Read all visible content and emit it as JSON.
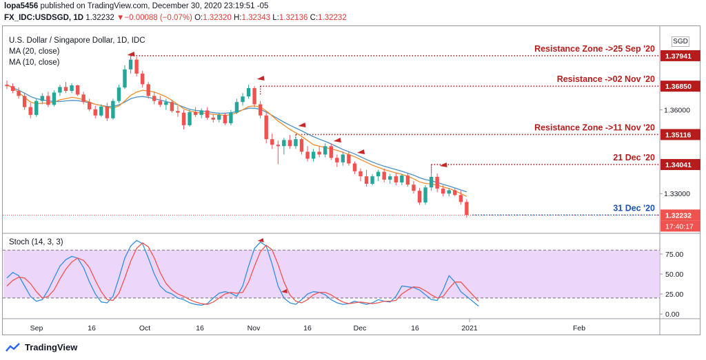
{
  "header": {
    "user": "lopa5456",
    "published": "published on TradingView.com, December 30, 2020 23:19:51 -05"
  },
  "quote": {
    "symbol": "FX_IDC:USDSGD, 1D",
    "last": "1.32232",
    "change": "▼−0.00088 (−0.07%)",
    "o_label": "O:",
    "o": "1.32320",
    "h_label": "H:",
    "h": "1.32343",
    "l_label": "L:",
    "l": "1.32136",
    "c_label": "C:",
    "c": "1.32232"
  },
  "legend": {
    "title": "U.S. Dollar / Singapore Dollar, 1D, IDC",
    "ma20": "MA (20, close)",
    "ma10": "MA (10, close)",
    "stoch": "Stoch (14, 3, 3)"
  },
  "currency_badge": "SGD",
  "footer": {
    "brand": "TradingView"
  },
  "colors": {
    "up": "#26a69a",
    "down": "#ef5350",
    "ma20": "#4a90c8",
    "ma10": "#f28c28",
    "annotation": "#b71c1c",
    "blue_line": "#1e4fb8",
    "stoch_fill": "#e6c8f7",
    "stoch_k": "#2f8fe0",
    "stoch_d": "#ef5350"
  },
  "chart_data": [
    {
      "type": "candlestick",
      "title": "U.S. Dollar / Singapore Dollar, 1D, IDC",
      "x_labels": [
        "Sep",
        "16",
        "Oct",
        "16",
        "Nov",
        "16",
        "Dec",
        "16",
        "2021",
        "Feb"
      ],
      "y_ticks": [
        "1.36000",
        "1.33000"
      ],
      "ylim": [
        1.316,
        1.39
      ],
      "candles": [
        [
          1.369,
          1.3705,
          1.3675,
          1.3685
        ],
        [
          1.3685,
          1.3695,
          1.366,
          1.3668
        ],
        [
          1.3668,
          1.368,
          1.364,
          1.365
        ],
        [
          1.365,
          1.366,
          1.36,
          1.361
        ],
        [
          1.361,
          1.3625,
          1.357,
          1.3582
        ],
        [
          1.3582,
          1.364,
          1.3575,
          1.3632
        ],
        [
          1.3632,
          1.366,
          1.362,
          1.365
        ],
        [
          1.365,
          1.3665,
          1.361,
          1.3618
        ],
        [
          1.3618,
          1.367,
          1.3612,
          1.3662
        ],
        [
          1.3662,
          1.369,
          1.365,
          1.3682
        ],
        [
          1.3682,
          1.37,
          1.366,
          1.3668
        ],
        [
          1.3668,
          1.3695,
          1.366,
          1.3688
        ],
        [
          1.3688,
          1.369,
          1.365,
          1.3655
        ],
        [
          1.3655,
          1.3665,
          1.362,
          1.3628
        ],
        [
          1.3628,
          1.364,
          1.3595,
          1.3602
        ],
        [
          1.3602,
          1.3615,
          1.357,
          1.358
        ],
        [
          1.358,
          1.362,
          1.3575,
          1.3612
        ],
        [
          1.3612,
          1.3625,
          1.356,
          1.357
        ],
        [
          1.357,
          1.364,
          1.3565,
          1.3632
        ],
        [
          1.3632,
          1.369,
          1.3625,
          1.368
        ],
        [
          1.368,
          1.376,
          1.3675,
          1.3745
        ],
        [
          1.3745,
          1.3794,
          1.373,
          1.378
        ],
        [
          1.378,
          1.379,
          1.372,
          1.373
        ],
        [
          1.373,
          1.374,
          1.368,
          1.3692
        ],
        [
          1.3692,
          1.37,
          1.364,
          1.365
        ],
        [
          1.365,
          1.3665,
          1.362,
          1.3632
        ],
        [
          1.3632,
          1.365,
          1.361,
          1.3618
        ],
        [
          1.3618,
          1.364,
          1.36,
          1.3628
        ],
        [
          1.3628,
          1.3635,
          1.359,
          1.3596
        ],
        [
          1.3596,
          1.3615,
          1.3575,
          1.359
        ],
        [
          1.359,
          1.36,
          1.353,
          1.3545
        ],
        [
          1.3545,
          1.36,
          1.354,
          1.3592
        ],
        [
          1.3592,
          1.361,
          1.3575,
          1.3582
        ],
        [
          1.3582,
          1.3605,
          1.357,
          1.3598
        ],
        [
          1.3598,
          1.361,
          1.3565,
          1.3572
        ],
        [
          1.3572,
          1.3585,
          1.3555,
          1.3565
        ],
        [
          1.3565,
          1.359,
          1.3555,
          1.3582
        ],
        [
          1.3582,
          1.359,
          1.3545,
          1.3552
        ],
        [
          1.3552,
          1.36,
          1.3545,
          1.359
        ],
        [
          1.359,
          1.364,
          1.3585,
          1.3628
        ],
        [
          1.3628,
          1.366,
          1.3615,
          1.3648
        ],
        [
          1.3648,
          1.369,
          1.364,
          1.3678
        ],
        [
          1.3678,
          1.3685,
          1.361,
          1.362
        ],
        [
          1.362,
          1.3632,
          1.357,
          1.358
        ],
        [
          1.358,
          1.359,
          1.348,
          1.3495
        ],
        [
          1.3495,
          1.3515,
          1.346,
          1.3475
        ],
        [
          1.3475,
          1.349,
          1.3405,
          1.347
        ],
        [
          1.347,
          1.35,
          1.344,
          1.3492
        ],
        [
          1.3492,
          1.351,
          1.346,
          1.347
        ],
        [
          1.347,
          1.3505,
          1.346,
          1.3495
        ],
        [
          1.3495,
          1.35,
          1.344,
          1.345
        ],
        [
          1.345,
          1.347,
          1.3415,
          1.3425
        ],
        [
          1.3425,
          1.346,
          1.3415,
          1.345
        ],
        [
          1.345,
          1.347,
          1.343,
          1.344
        ],
        [
          1.344,
          1.348,
          1.343,
          1.347
        ],
        [
          1.347,
          1.348,
          1.342,
          1.3428
        ],
        [
          1.3428,
          1.344,
          1.3395,
          1.3412
        ],
        [
          1.3412,
          1.345,
          1.34,
          1.344
        ],
        [
          1.344,
          1.345,
          1.34,
          1.3408
        ],
        [
          1.3408,
          1.3415,
          1.337,
          1.338
        ],
        [
          1.338,
          1.339,
          1.3345,
          1.3362
        ],
        [
          1.3362,
          1.3385,
          1.3325,
          1.3335
        ],
        [
          1.3335,
          1.337,
          1.333,
          1.3362
        ],
        [
          1.3362,
          1.3385,
          1.3345,
          1.3378
        ],
        [
          1.3378,
          1.339,
          1.334,
          1.335
        ],
        [
          1.335,
          1.337,
          1.3335,
          1.3362
        ],
        [
          1.3362,
          1.3375,
          1.333,
          1.334
        ],
        [
          1.334,
          1.337,
          1.333,
          1.3365
        ],
        [
          1.3365,
          1.3372,
          1.3325,
          1.3332
        ],
        [
          1.3332,
          1.3345,
          1.33,
          1.331
        ],
        [
          1.331,
          1.332,
          1.326,
          1.3268
        ],
        [
          1.3268,
          1.333,
          1.326,
          1.3322
        ],
        [
          1.3322,
          1.3404,
          1.331,
          1.336
        ],
        [
          1.336,
          1.3372,
          1.3305,
          1.3318
        ],
        [
          1.3318,
          1.333,
          1.329,
          1.33
        ],
        [
          1.33,
          1.332,
          1.329,
          1.3312
        ],
        [
          1.3312,
          1.332,
          1.329,
          1.3295
        ],
        [
          1.3295,
          1.331,
          1.326,
          1.327
        ],
        [
          1.327,
          1.328,
          1.3213,
          1.3223
        ]
      ],
      "series": [
        {
          "name": "MA (20, close)",
          "values": [
            1.369,
            1.368,
            1.367,
            1.366,
            1.3648,
            1.364,
            1.3636,
            1.3632,
            1.363,
            1.363,
            1.3632,
            1.3634,
            1.3633,
            1.363,
            1.3626,
            1.362,
            1.3616,
            1.3612,
            1.3612,
            1.3618,
            1.3628,
            1.364,
            1.3646,
            1.3648,
            1.3645,
            1.364,
            1.3635,
            1.363,
            1.3624,
            1.3618,
            1.361,
            1.3602,
            1.3598,
            1.3596,
            1.3594,
            1.359,
            1.3588,
            1.3588,
            1.359,
            1.3594,
            1.36,
            1.3606,
            1.3606,
            1.3602,
            1.3592,
            1.358,
            1.3568,
            1.3556,
            1.3545,
            1.3535,
            1.3525,
            1.3514,
            1.3504,
            1.3495,
            1.3487,
            1.3478,
            1.3468,
            1.3458,
            1.345,
            1.3442,
            1.3432,
            1.3422,
            1.3413,
            1.3405,
            1.3398,
            1.3392,
            1.3386,
            1.338,
            1.3373,
            1.3366,
            1.3357,
            1.335,
            1.3346,
            1.334,
            1.3333,
            1.3327,
            1.332,
            1.3313,
            1.3306
          ]
        },
        {
          "name": "MA (10, close)",
          "values": [
            1.369,
            1.3678,
            1.3662,
            1.3645,
            1.3628,
            1.3622,
            1.3624,
            1.3624,
            1.3628,
            1.3636,
            1.364,
            1.3645,
            1.3642,
            1.3636,
            1.3628,
            1.362,
            1.3616,
            1.3609,
            1.3606,
            1.3614,
            1.3632,
            1.3652,
            1.3664,
            1.367,
            1.3668,
            1.3664,
            1.3656,
            1.3647,
            1.3634,
            1.3619,
            1.3604,
            1.3596,
            1.3592,
            1.3589,
            1.3587,
            1.3584,
            1.3583,
            1.358,
            1.3583,
            1.359,
            1.36,
            1.3612,
            1.3614,
            1.361,
            1.3596,
            1.3578,
            1.356,
            1.3545,
            1.353,
            1.3518,
            1.3505,
            1.349,
            1.3475,
            1.347,
            1.3465,
            1.346,
            1.3455,
            1.3448,
            1.344,
            1.3432,
            1.3422,
            1.3412,
            1.3402,
            1.3394,
            1.3386,
            1.338,
            1.3374,
            1.3369,
            1.3362,
            1.3353,
            1.3342,
            1.3336,
            1.3335,
            1.333,
            1.3324,
            1.3318,
            1.331,
            1.33,
            1.329
          ]
        }
      ],
      "price_labels": [
        "1.37941",
        "1.36850",
        "1.35116",
        "1.34041",
        "1.32232",
        "17:40:17"
      ],
      "annotations": [
        "Resistance Zone ->25 Sep '20",
        "Resistance ->02 Nov '20",
        "Resistance Zone ->11 Nov '20",
        "21 Dec '20",
        "31 Dec '20"
      ]
    },
    {
      "type": "line",
      "title": "Stoch (14, 3, 3)",
      "y_ticks": [
        "75.00",
        "50.00",
        "25.00",
        "0.00"
      ],
      "ylim": [
        -5,
        100
      ],
      "bands": [
        20,
        80
      ],
      "series": [
        {
          "name": "%K",
          "values": [
            45,
            52,
            48,
            35,
            22,
            16,
            18,
            30,
            45,
            60,
            68,
            72,
            70,
            58,
            40,
            25,
            15,
            14,
            22,
            45,
            70,
            85,
            92,
            88,
            70,
            50,
            35,
            28,
            25,
            20,
            18,
            14,
            12,
            11,
            13,
            20,
            26,
            28,
            26,
            22,
            35,
            60,
            82,
            90,
            85,
            62,
            35,
            20,
            14,
            12,
            18,
            25,
            28,
            27,
            24,
            18,
            14,
            12,
            13,
            16,
            14,
            12,
            14,
            18,
            16,
            15,
            22,
            35,
            34,
            33,
            30,
            24,
            18,
            17,
            30,
            48,
            40,
            28,
            22,
            16,
            10
          ]
        },
        {
          "name": "%D",
          "values": [
            35,
            42,
            46,
            45,
            38,
            28,
            20,
            22,
            30,
            44,
            56,
            65,
            70,
            67,
            58,
            42,
            28,
            18,
            17,
            26,
            45,
            66,
            82,
            89,
            84,
            70,
            52,
            38,
            30,
            25,
            22,
            18,
            15,
            13,
            12,
            15,
            20,
            25,
            27,
            26,
            27,
            40,
            60,
            78,
            86,
            80,
            62,
            40,
            24,
            16,
            14,
            18,
            24,
            27,
            27,
            24,
            19,
            15,
            13,
            14,
            15,
            14,
            13,
            14,
            16,
            16,
            17,
            25,
            30,
            34,
            33,
            29,
            24,
            20,
            22,
            32,
            40,
            40,
            32,
            24,
            16
          ]
        }
      ]
    }
  ]
}
